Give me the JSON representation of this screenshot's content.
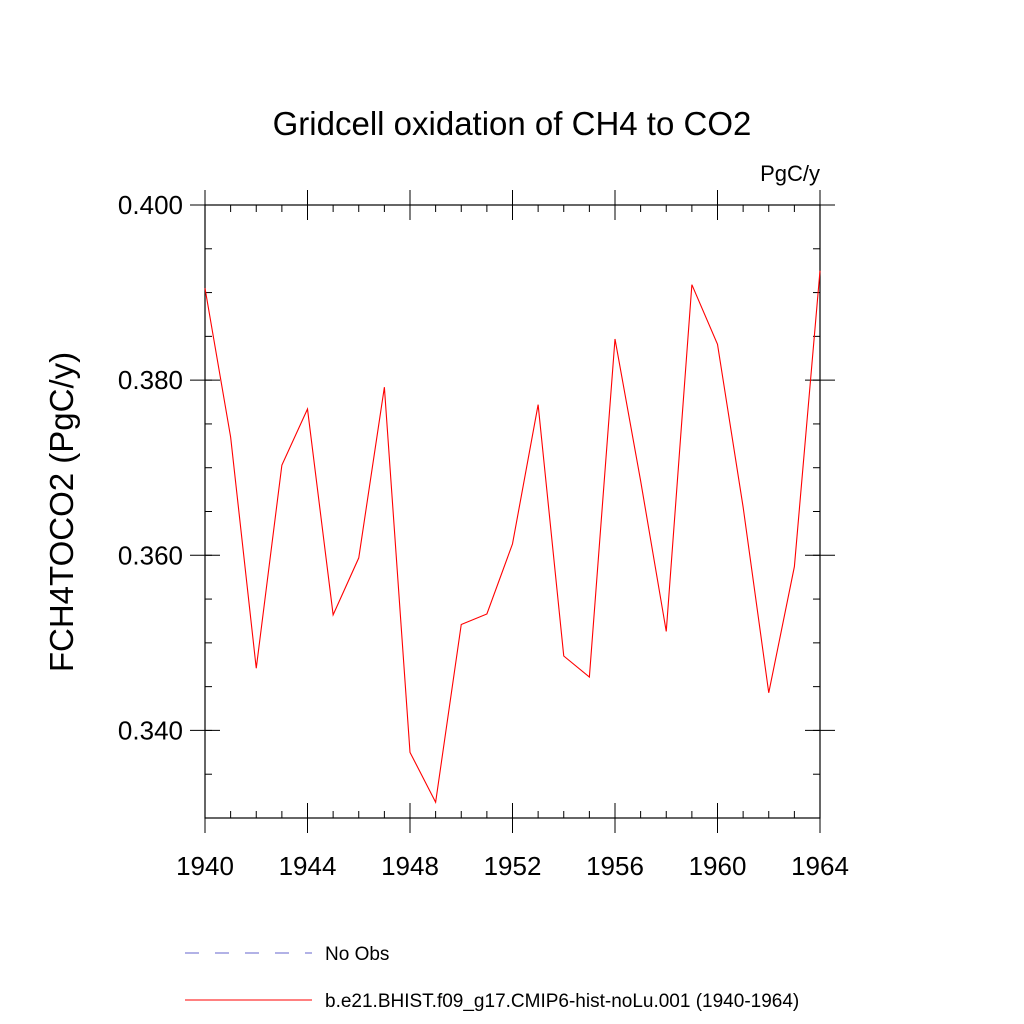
{
  "chart_data": {
    "type": "line",
    "title": "Gridcell oxidation of CH4 to CO2",
    "units_label": "PgC/y",
    "ylabel": "FCH4TOCO2  (PgC/y)",
    "xlabel": "",
    "xlim": [
      1940,
      1964
    ],
    "ylim": [
      0.33,
      0.4
    ],
    "x_major_ticks": [
      1940,
      1944,
      1948,
      1952,
      1956,
      1960,
      1964
    ],
    "x_minor_step": 1,
    "y_major_ticks": [
      0.34,
      0.36,
      0.38,
      0.4
    ],
    "y_tick_labels": [
      "0.340",
      "0.360",
      "0.380",
      "0.400"
    ],
    "y_minor_step": 0.005,
    "grid": false,
    "legend_position": "bottom",
    "series": [
      {
        "name": "No Obs",
        "style": "dashed",
        "color": "#6666cc",
        "values": []
      },
      {
        "name": "b.e21.BHIST.f09_g17.CMIP6-hist-noLu.001 (1940-1964)",
        "style": "solid",
        "color": "#ff0000",
        "x": [
          1940,
          1941,
          1942,
          1943,
          1944,
          1945,
          1946,
          1947,
          1948,
          1949,
          1950,
          1951,
          1952,
          1953,
          1954,
          1955,
          1956,
          1957,
          1958,
          1959,
          1960,
          1961,
          1962,
          1963,
          1964
        ],
        "values": [
          0.3905,
          0.3735,
          0.3471,
          0.3703,
          0.3767,
          0.3532,
          0.3597,
          0.3792,
          0.3375,
          0.3318,
          0.3521,
          0.3533,
          0.3613,
          0.3772,
          0.3485,
          0.3461,
          0.3847,
          0.3685,
          0.3513,
          0.3909,
          0.3841,
          0.3655,
          0.3443,
          0.3587,
          0.3925
        ]
      }
    ]
  }
}
